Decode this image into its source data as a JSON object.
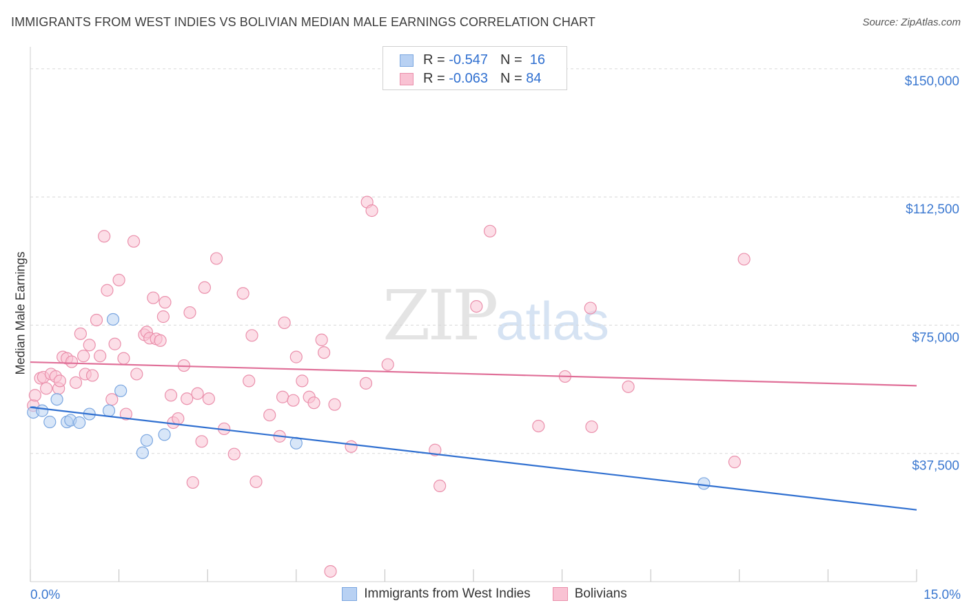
{
  "title": "IMMIGRANTS FROM WEST INDIES VS BOLIVIAN MEDIAN MALE EARNINGS CORRELATION CHART",
  "source": "Source: ZipAtlas.com",
  "watermark": {
    "zip": "ZIP",
    "atlas": "atlas"
  },
  "legend": {
    "rows": [
      {
        "r_label": "R =",
        "r_value": "-0.547",
        "n_label": "N =",
        "n_value": "16"
      },
      {
        "r_label": "R =",
        "r_value": "-0.063",
        "n_label": "N =",
        "n_value": "84"
      }
    ]
  },
  "bottom_legend": [
    "Immigrants from West Indies",
    "Bolivians"
  ],
  "colors": {
    "blue_fill": "#b8d1f3",
    "blue_stroke": "#7aa6e0",
    "blue_line": "#2f6fd0",
    "pink_fill": "#f9c2d3",
    "pink_stroke": "#ea8fab",
    "pink_line": "#e06f98",
    "axis_text": "#3b78d0",
    "grid": "#d8d8d8"
  },
  "chart_data": {
    "type": "scatter",
    "title": "IMMIGRANTS FROM WEST INDIES VS BOLIVIAN MEDIAN MALE EARNINGS CORRELATION CHART",
    "xlabel": "",
    "ylabel": "Median Male Earnings",
    "xlim": [
      0,
      15
    ],
    "ylim": [
      0,
      155000
    ],
    "x_tick_labels": [
      "0.0%",
      "15.0%"
    ],
    "y_ticks": [
      37500,
      75000,
      112500,
      150000
    ],
    "y_tick_labels": [
      "$37,500",
      "$75,000",
      "$112,500",
      "$150,000"
    ],
    "series": [
      {
        "name": "Immigrants from West Indies",
        "color": "blue",
        "r": -0.547,
        "n": 16,
        "trend": {
          "x": [
            0,
            15
          ],
          "y": [
            51000,
            21000
          ]
        },
        "points": [
          {
            "x": 0.05,
            "y": 49500
          },
          {
            "x": 0.2,
            "y": 50000
          },
          {
            "x": 0.33,
            "y": 46700
          },
          {
            "x": 0.45,
            "y": 53300
          },
          {
            "x": 0.62,
            "y": 46700
          },
          {
            "x": 0.68,
            "y": 47200
          },
          {
            "x": 0.83,
            "y": 46500
          },
          {
            "x": 1.0,
            "y": 49000
          },
          {
            "x": 1.33,
            "y": 50000
          },
          {
            "x": 1.4,
            "y": 76700
          },
          {
            "x": 1.53,
            "y": 55800
          },
          {
            "x": 1.9,
            "y": 37700
          },
          {
            "x": 1.97,
            "y": 41300
          },
          {
            "x": 2.27,
            "y": 43000
          },
          {
            "x": 4.5,
            "y": 40500
          },
          {
            "x": 11.4,
            "y": 28700
          }
        ]
      },
      {
        "name": "Bolivians",
        "color": "pink",
        "r": -0.063,
        "n": 84,
        "trend": {
          "x": [
            0,
            15
          ],
          "y": [
            64200,
            57300
          ]
        },
        "points": [
          {
            "x": 0.05,
            "y": 51500
          },
          {
            "x": 0.08,
            "y": 54500
          },
          {
            "x": 0.17,
            "y": 59500
          },
          {
            "x": 0.22,
            "y": 59800
          },
          {
            "x": 0.27,
            "y": 56500
          },
          {
            "x": 0.35,
            "y": 60700
          },
          {
            "x": 0.43,
            "y": 60000
          },
          {
            "x": 0.48,
            "y": 56500
          },
          {
            "x": 0.5,
            "y": 58700
          },
          {
            "x": 0.55,
            "y": 65700
          },
          {
            "x": 0.62,
            "y": 65300
          },
          {
            "x": 0.7,
            "y": 64300
          },
          {
            "x": 0.77,
            "y": 58200
          },
          {
            "x": 0.85,
            "y": 72500
          },
          {
            "x": 0.9,
            "y": 66000
          },
          {
            "x": 0.93,
            "y": 60700
          },
          {
            "x": 1.0,
            "y": 69200
          },
          {
            "x": 1.05,
            "y": 60300
          },
          {
            "x": 1.12,
            "y": 76500
          },
          {
            "x": 1.18,
            "y": 66000
          },
          {
            "x": 1.25,
            "y": 101000
          },
          {
            "x": 1.3,
            "y": 85200
          },
          {
            "x": 1.38,
            "y": 53300
          },
          {
            "x": 1.43,
            "y": 69500
          },
          {
            "x": 1.5,
            "y": 88200
          },
          {
            "x": 1.58,
            "y": 65300
          },
          {
            "x": 1.62,
            "y": 49000
          },
          {
            "x": 1.75,
            "y": 99500
          },
          {
            "x": 1.8,
            "y": 60700
          },
          {
            "x": 1.93,
            "y": 72200
          },
          {
            "x": 1.97,
            "y": 73000
          },
          {
            "x": 2.02,
            "y": 71200
          },
          {
            "x": 2.08,
            "y": 83000
          },
          {
            "x": 2.13,
            "y": 71000
          },
          {
            "x": 2.2,
            "y": 70500
          },
          {
            "x": 2.25,
            "y": 77500
          },
          {
            "x": 2.28,
            "y": 81700
          },
          {
            "x": 2.38,
            "y": 54500
          },
          {
            "x": 2.42,
            "y": 46500
          },
          {
            "x": 2.5,
            "y": 47700
          },
          {
            "x": 2.6,
            "y": 63200
          },
          {
            "x": 2.65,
            "y": 53500
          },
          {
            "x": 2.7,
            "y": 78700
          },
          {
            "x": 2.75,
            "y": 29000
          },
          {
            "x": 2.83,
            "y": 55000
          },
          {
            "x": 2.9,
            "y": 41000
          },
          {
            "x": 2.95,
            "y": 86000
          },
          {
            "x": 3.02,
            "y": 53500
          },
          {
            "x": 3.15,
            "y": 94500
          },
          {
            "x": 3.28,
            "y": 44700
          },
          {
            "x": 3.45,
            "y": 37300
          },
          {
            "x": 3.6,
            "y": 84300
          },
          {
            "x": 3.7,
            "y": 58700
          },
          {
            "x": 3.75,
            "y": 72000
          },
          {
            "x": 3.82,
            "y": 29200
          },
          {
            "x": 4.05,
            "y": 48700
          },
          {
            "x": 4.22,
            "y": 42500
          },
          {
            "x": 4.27,
            "y": 54000
          },
          {
            "x": 4.3,
            "y": 75700
          },
          {
            "x": 4.45,
            "y": 53000
          },
          {
            "x": 4.5,
            "y": 65700
          },
          {
            "x": 4.6,
            "y": 58700
          },
          {
            "x": 4.72,
            "y": 54000
          },
          {
            "x": 4.8,
            "y": 52300
          },
          {
            "x": 4.93,
            "y": 70700
          },
          {
            "x": 4.97,
            "y": 67000
          },
          {
            "x": 5.08,
            "y": 3000
          },
          {
            "x": 5.15,
            "y": 51800
          },
          {
            "x": 5.43,
            "y": 39500
          },
          {
            "x": 5.7,
            "y": 111000
          },
          {
            "x": 5.78,
            "y": 108500
          },
          {
            "x": 5.68,
            "y": 58000
          },
          {
            "x": 6.05,
            "y": 63500
          },
          {
            "x": 6.85,
            "y": 38500
          },
          {
            "x": 6.93,
            "y": 28000
          },
          {
            "x": 7.55,
            "y": 80500
          },
          {
            "x": 7.78,
            "y": 102500
          },
          {
            "x": 8.6,
            "y": 45500
          },
          {
            "x": 9.05,
            "y": 60000
          },
          {
            "x": 9.48,
            "y": 80000
          },
          {
            "x": 9.5,
            "y": 45300
          },
          {
            "x": 10.12,
            "y": 57000
          },
          {
            "x": 11.92,
            "y": 35000
          },
          {
            "x": 12.08,
            "y": 94300
          }
        ]
      }
    ]
  }
}
